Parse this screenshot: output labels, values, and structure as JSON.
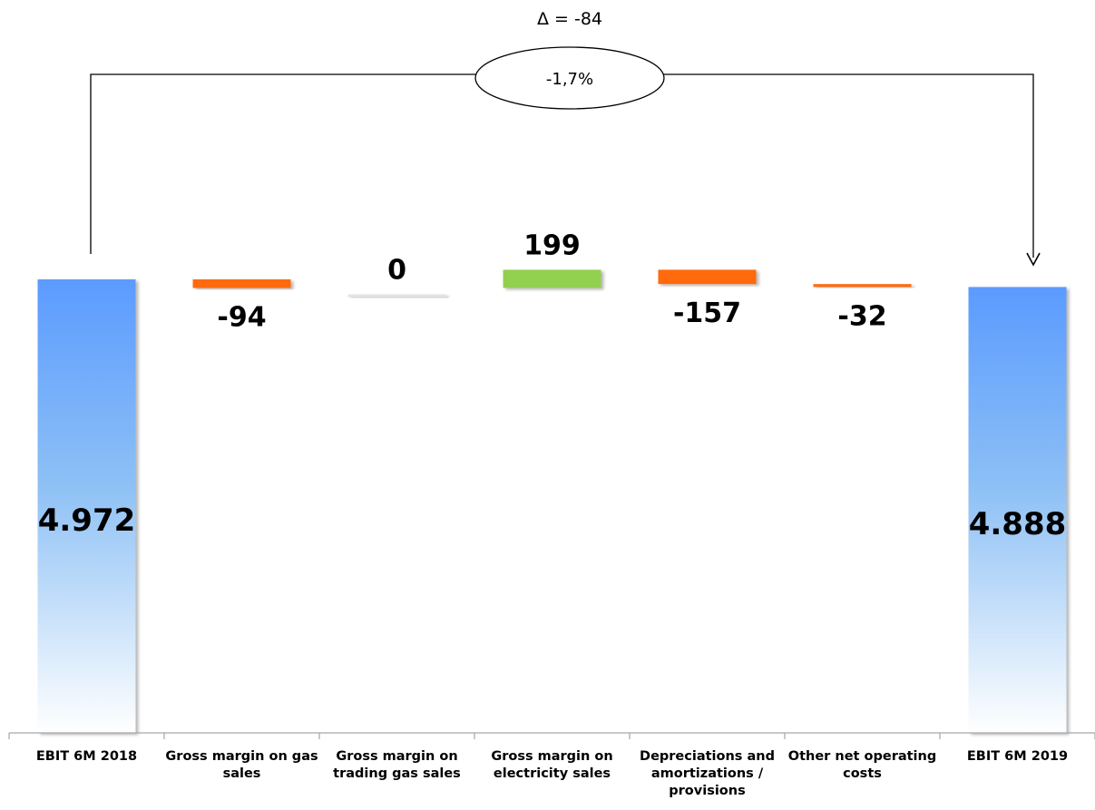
{
  "chart_data": {
    "type": "bar",
    "subtype": "waterfall",
    "categories": [
      "EBIT 6M 2018",
      "Gross margin on gas sales",
      "Gross margin on trading gas sales",
      "Gross margin on electricity sales",
      "Depreciations and amortizations / provisions",
      "Other net operating costs",
      "EBIT 6M 2019"
    ],
    "category_lines": [
      [
        "EBIT 6M 2018"
      ],
      [
        "Gross margin on gas",
        "sales"
      ],
      [
        "Gross margin on",
        "trading gas sales"
      ],
      [
        "Gross margin on",
        "electricity sales"
      ],
      [
        "Depreciations and",
        "amortizations /",
        "provisions"
      ],
      [
        "Other net operating",
        "costs"
      ],
      [
        "EBIT 6M 2019"
      ]
    ],
    "values": [
      4972,
      -94,
      0,
      199,
      -157,
      -32,
      4888
    ],
    "bar_kinds": [
      "total",
      "delta",
      "delta",
      "delta",
      "delta",
      "delta",
      "total"
    ],
    "data_labels": [
      "4.972",
      "-94",
      "0",
      "199",
      "-157",
      "-32",
      "4.888"
    ],
    "delta_annotation": "Δ = -84",
    "percent_annotation": "-1,7%",
    "colors": {
      "total_top": "#5b9bff",
      "total_mid": "#8dc0f5",
      "total_bottom": "#ffffff",
      "decrease": "#ff6a10",
      "increase": "#92d050",
      "neutral": "#e4e4e4",
      "axis": "#a6a6a6",
      "connector": "#000000"
    },
    "legend": "none",
    "grid": false
  }
}
